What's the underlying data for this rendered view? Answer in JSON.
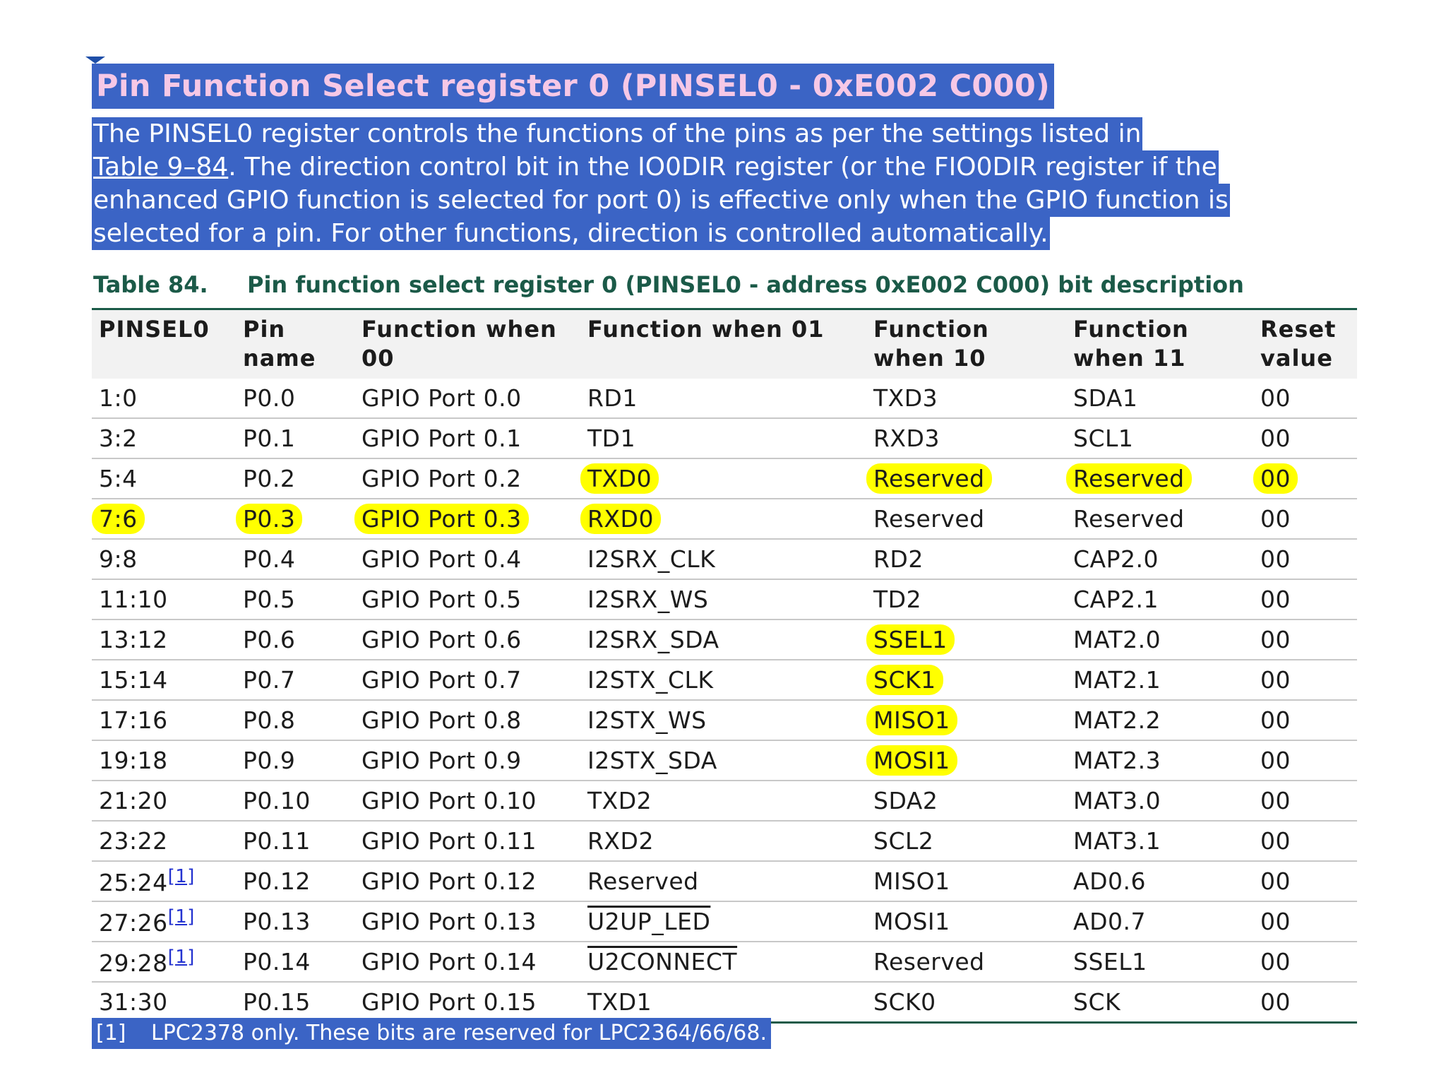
{
  "heading": "Pin Function Select register 0 (PINSEL0 - 0xE002 C000)",
  "paragraph": {
    "line1": "The PINSEL0 register controls the functions of the pins as per the settings listed in",
    "line2_link": "Table 9–84",
    "line2_rest": ". The direction control bit in the IO0DIR register (or the FIO0DIR register if the",
    "line3": "enhanced GPIO function is selected for port 0) is effective only when the GPIO function is",
    "line4": "selected for a pin. For other functions, direction is controlled automatically."
  },
  "table": {
    "caption_number": "Table 84.",
    "caption_title": "Pin function select register 0 (PINSEL0 - address 0xE002 C000) bit description",
    "headers": {
      "bits": "PINSEL0",
      "pin_1": "Pin",
      "pin_2": "name",
      "f00_1": "Function when",
      "f00_2": "00",
      "f01": "Function when 01",
      "f10_1": "Function",
      "f10_2": "when 10",
      "f11_1": "Function",
      "f11_2": "when 11",
      "reset_1": "Reset",
      "reset_2": "value"
    },
    "rows": [
      {
        "bits": "1:0",
        "pin": "P0.0",
        "f00": "GPIO Port 0.0",
        "f01": "RD1",
        "f10": "TXD3",
        "f11": "SDA1",
        "reset": "00"
      },
      {
        "bits": "3:2",
        "pin": "P0.1",
        "f00": "GPIO Port 0.1",
        "f01": "TD1",
        "f10": "RXD3",
        "f11": "SCL1",
        "reset": "00"
      },
      {
        "bits": "5:4",
        "pin": "P0.2",
        "f00": "GPIO Port 0.2",
        "f01": "TXD0",
        "f10": "Reserved",
        "f11": "Reserved",
        "reset": "00"
      },
      {
        "bits": "7:6",
        "pin": "P0.3",
        "f00": "GPIO Port 0.3",
        "f01": "RXD0",
        "f10": "Reserved",
        "f11": "Reserved",
        "reset": "00"
      },
      {
        "bits": "9:8",
        "pin": "P0.4",
        "f00": "GPIO Port 0.4",
        "f01": "I2SRX_CLK",
        "f10": "RD2",
        "f11": "CAP2.0",
        "reset": "00"
      },
      {
        "bits": "11:10",
        "pin": "P0.5",
        "f00": "GPIO Port 0.5",
        "f01": "I2SRX_WS",
        "f10": "TD2",
        "f11": "CAP2.1",
        "reset": "00"
      },
      {
        "bits": "13:12",
        "pin": "P0.6",
        "f00": "GPIO Port 0.6",
        "f01": "I2SRX_SDA",
        "f10": "SSEL1",
        "f11": "MAT2.0",
        "reset": "00"
      },
      {
        "bits": "15:14",
        "pin": "P0.7",
        "f00": "GPIO Port 0.7",
        "f01": "I2STX_CLK",
        "f10": "SCK1",
        "f11": "MAT2.1",
        "reset": "00"
      },
      {
        "bits": "17:16",
        "pin": "P0.8",
        "f00": "GPIO Port 0.8",
        "f01": "I2STX_WS",
        "f10": "MISO1",
        "f11": "MAT2.2",
        "reset": "00"
      },
      {
        "bits": "19:18",
        "pin": "P0.9",
        "f00": "GPIO Port 0.9",
        "f01": "I2STX_SDA",
        "f10": "MOSI1",
        "f11": "MAT2.3",
        "reset": "00"
      },
      {
        "bits": "21:20",
        "pin": "P0.10",
        "f00": "GPIO Port 0.10",
        "f01": "TXD2",
        "f10": "SDA2",
        "f11": "MAT3.0",
        "reset": "00"
      },
      {
        "bits": "23:22",
        "pin": "P0.11",
        "f00": "GPIO Port 0.11",
        "f01": "RXD2",
        "f10": "SCL2",
        "f11": "MAT3.1",
        "reset": "00"
      },
      {
        "bits": "25:24",
        "fn": "[1]",
        "pin": "P0.12",
        "f00": "GPIO Port 0.12",
        "f01": "Reserved",
        "f10": "MISO1",
        "f11": "AD0.6",
        "reset": "00"
      },
      {
        "bits": "27:26",
        "fn": "[1]",
        "pin": "P0.13",
        "f00": "GPIO Port 0.13",
        "f01": "U2UP_LED",
        "f10": "MOSI1",
        "f11": "AD0.7",
        "reset": "00"
      },
      {
        "bits": "29:28",
        "fn": "[1]",
        "pin": "P0.14",
        "f00": "GPIO Port 0.14",
        "f01": "U2CONNECT",
        "f10": "Reserved",
        "f11": "SSEL1",
        "reset": "00"
      },
      {
        "bits": "31:30",
        "pin": "P0.15",
        "f00": "GPIO Port 0.15",
        "f01": "TXD1",
        "f10": "SCK0",
        "f11": "SCK",
        "reset": "00"
      }
    ],
    "highlighted_cells": [
      "2.f01",
      "2.f10",
      "2.f11",
      "2.reset",
      "3.bits",
      "3.pin",
      "3.f00",
      "3.f01",
      "6.f10",
      "7.f10",
      "8.f10",
      "9.f10"
    ],
    "overlined_cells": [
      "13.f01",
      "14.f01"
    ]
  },
  "footnote": {
    "mark": "[1]",
    "text": "LPC2378 only. These bits are reserved for LPC2364/66/68."
  },
  "colors": {
    "selection": "#3b64c5",
    "heading_text": "#f6c8e6",
    "highlight": "#ffff00",
    "table_rule": "#1b5a48",
    "header_bg": "#f2f2f2"
  }
}
